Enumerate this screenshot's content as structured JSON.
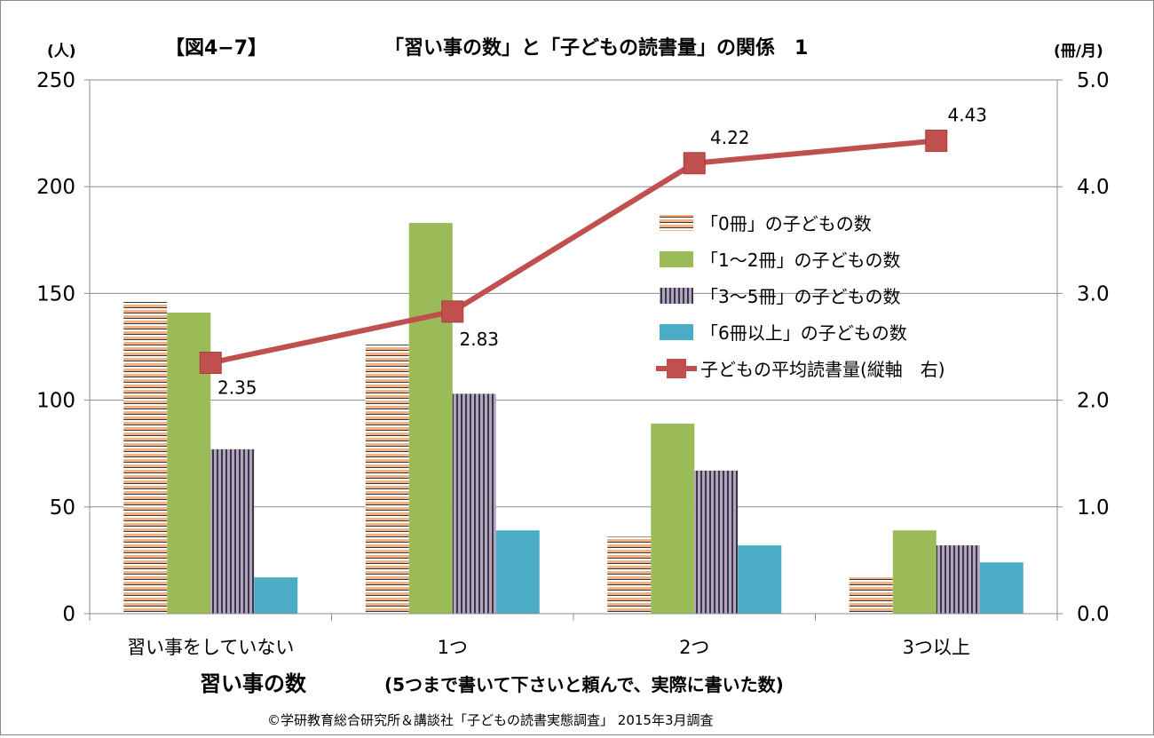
{
  "chart_data": {
    "type": "bar",
    "figure_label": "【図4−7】",
    "title": "「習い事の数」と「子どもの読書量」の関係　1",
    "y_left_unit": "(人)",
    "y_right_unit": "(冊/月)",
    "xlabel": "習い事の数",
    "xlabel_note": "(5つまで書いて下さいと頼んで、実際に書いた数)",
    "source": "©学研教育総合研究所＆講談社「子どもの読書実態調査」 2015年3月調査",
    "categories": [
      "習い事をしていない",
      "1つ",
      "2つ",
      "3つ以上"
    ],
    "ylim_left": [
      0,
      250
    ],
    "ylim_right": [
      0.0,
      5.0
    ],
    "yticks_left": [
      "0",
      "50",
      "100",
      "150",
      "200",
      "250"
    ],
    "yticks_right": [
      "0.0",
      "1.0",
      "2.0",
      "3.0",
      "4.0",
      "5.0"
    ],
    "grid": true,
    "legend_position": "right-center",
    "series": [
      {
        "name": "「0冊」の子どもの数",
        "kind": "bar",
        "axis": "left",
        "color": "#f4b183",
        "pattern": "hstripe",
        "values": [
          146,
          126,
          36,
          17
        ]
      },
      {
        "name": "「1〜2冊」の子どもの数",
        "kind": "bar",
        "axis": "left",
        "color": "#9bbb59",
        "pattern": "solid",
        "values": [
          141,
          183,
          89,
          39
        ]
      },
      {
        "name": "「3〜5冊」の子どもの数",
        "kind": "bar",
        "axis": "left",
        "color": "#b3a2c7",
        "pattern": "vstripe",
        "values": [
          77,
          103,
          67,
          32
        ]
      },
      {
        "name": "「6冊以上」の子どもの数",
        "kind": "bar",
        "axis": "left",
        "color": "#4bacc6",
        "pattern": "solid",
        "values": [
          17,
          39,
          32,
          24
        ]
      },
      {
        "name": "子どもの平均読書量(縦軸　右)",
        "kind": "line",
        "axis": "right",
        "color": "#c0504d",
        "values": [
          2.35,
          2.83,
          4.22,
          4.43
        ],
        "labels": [
          "2.35",
          "2.83",
          "4.22",
          "4.43"
        ]
      }
    ]
  }
}
